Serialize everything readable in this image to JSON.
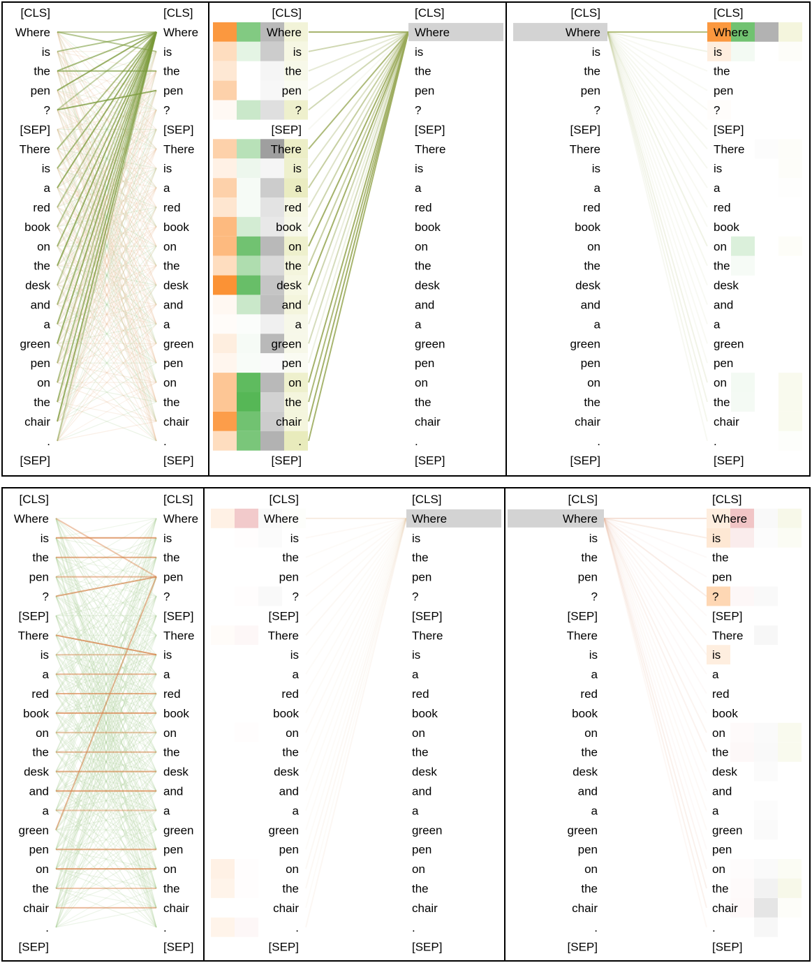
{
  "figure": {
    "description": "Attention visualization between tokens of a question-context pair"
  },
  "tokens": [
    "[CLS]",
    "Where",
    "is",
    "the",
    "pen",
    "?",
    "[SEP]",
    "There",
    "is",
    "a",
    "red",
    "book",
    "on",
    "the",
    "desk",
    "and",
    "a",
    "green",
    "pen",
    "on",
    "the",
    "chair",
    ".",
    "[SEP]"
  ],
  "query_token": "Where",
  "palette": {
    "green_line": "#7a9a3a",
    "orange_line": "#d9824a",
    "light_green_line": "#9fc88a",
    "highlight_gray": "#d3d3d3",
    "orange": "#fb8c2a",
    "green": "#4db34d",
    "gray": "#7f7f7f",
    "yellow": "#d9dd8f",
    "red": "#e79ea0"
  },
  "panels": [
    {
      "name": "top-left-all-attention",
      "style": "green",
      "strong_edges": [
        [
          1,
          1
        ],
        [
          2,
          1
        ],
        [
          3,
          1
        ],
        [
          4,
          1
        ],
        [
          5,
          1
        ],
        [
          7,
          1
        ],
        [
          8,
          1
        ],
        [
          9,
          1
        ],
        [
          10,
          1
        ],
        [
          11,
          1
        ],
        [
          12,
          1
        ],
        [
          13,
          1
        ],
        [
          14,
          1
        ],
        [
          15,
          1
        ],
        [
          16,
          1
        ],
        [
          17,
          1
        ],
        [
          18,
          1
        ],
        [
          19,
          1
        ],
        [
          20,
          1
        ],
        [
          21,
          1
        ],
        [
          22,
          1
        ],
        [
          1,
          2
        ],
        [
          3,
          3
        ],
        [
          5,
          4
        ]
      ]
    },
    {
      "name": "top-middle-query-attention",
      "heat": [
        [
          0,
          0,
          0,
          0
        ],
        [
          0.9,
          0.7,
          0.55,
          0.35
        ],
        [
          0.3,
          0.15,
          0.4,
          0.25
        ],
        [
          0.2,
          0,
          0.08,
          0.2
        ],
        [
          0.4,
          0,
          0.06,
          0.12
        ],
        [
          0.05,
          0.3,
          0.25,
          0.45
        ],
        [
          0,
          0,
          0,
          0
        ],
        [
          0.4,
          0.4,
          0.75,
          0.5
        ],
        [
          0.12,
          0.1,
          0.08,
          0.45
        ],
        [
          0.4,
          0.05,
          0.4,
          0.55
        ],
        [
          0.22,
          0.05,
          0.22,
          0.25
        ],
        [
          0.6,
          0.25,
          0.18,
          0.2
        ],
        [
          0.6,
          0.8,
          0.55,
          0.45
        ],
        [
          0.3,
          0.45,
          0.3,
          0.3
        ],
        [
          0.95,
          0.85,
          0.45,
          0.25
        ],
        [
          0.06,
          0.3,
          0.5,
          0.3
        ],
        [
          0.03,
          0.02,
          0.12,
          0.2
        ],
        [
          0.15,
          0.05,
          0.55,
          0.2
        ],
        [
          0.08,
          0.04,
          0.04,
          0.12
        ],
        [
          0.5,
          0.9,
          0.55,
          0.45
        ],
        [
          0.5,
          0.95,
          0.35,
          0.3
        ],
        [
          0.85,
          0.8,
          0.4,
          0.3
        ],
        [
          0.3,
          0.75,
          0.6,
          0.6
        ],
        [
          0,
          0,
          0,
          0
        ]
      ]
    },
    {
      "name": "top-right-query-attention",
      "heat": [
        [
          0,
          0,
          0,
          0
        ],
        [
          0.9,
          0.8,
          0.6,
          0.3
        ],
        [
          0.15,
          0.07,
          0,
          0.05
        ],
        [
          0,
          0,
          0,
          0
        ],
        [
          0,
          0,
          0,
          0
        ],
        [
          0.02,
          0,
          0,
          0
        ],
        [
          0,
          0,
          0,
          0
        ],
        [
          0,
          0,
          0.02,
          0.05
        ],
        [
          0,
          0,
          0,
          0.05
        ],
        [
          0,
          0,
          0,
          0.02
        ],
        [
          0,
          0,
          0,
          0
        ],
        [
          0,
          0,
          0,
          0
        ],
        [
          0,
          0.2,
          0,
          0.06
        ],
        [
          0,
          0.05,
          0,
          0
        ],
        [
          0,
          0,
          0,
          0
        ],
        [
          0,
          0,
          0,
          0
        ],
        [
          0,
          0,
          0,
          0
        ],
        [
          0,
          0,
          0,
          0
        ],
        [
          0,
          0,
          0,
          0
        ],
        [
          0,
          0.07,
          0,
          0.15
        ],
        [
          0,
          0.06,
          0,
          0.15
        ],
        [
          0,
          0,
          0,
          0.15
        ],
        [
          0,
          0,
          0,
          0.04
        ],
        [
          0,
          0,
          0,
          0
        ]
      ]
    },
    {
      "name": "bottom-left-all-attention",
      "style": "orange",
      "strong_edges": [
        [
          1,
          4
        ],
        [
          4,
          4
        ],
        [
          5,
          4
        ],
        [
          7,
          8
        ],
        [
          8,
          8
        ],
        [
          9,
          9
        ],
        [
          10,
          10
        ],
        [
          11,
          11
        ],
        [
          12,
          12
        ],
        [
          13,
          13
        ],
        [
          14,
          14
        ],
        [
          15,
          15
        ],
        [
          16,
          16
        ],
        [
          17,
          4
        ],
        [
          18,
          18
        ],
        [
          19,
          19
        ],
        [
          20,
          20
        ],
        [
          21,
          21
        ],
        [
          3,
          3
        ],
        [
          2,
          2
        ]
      ]
    },
    {
      "name": "bottom-middle-query-attention",
      "heat": [
        [
          0,
          0,
          0,
          0
        ],
        [
          0.12,
          0.55,
          0.05,
          0.04
        ],
        [
          0,
          0.02,
          0.03,
          0
        ],
        [
          0,
          0,
          0,
          0
        ],
        [
          0,
          0,
          0,
          0
        ],
        [
          0,
          0.02,
          0.05,
          0
        ],
        [
          0,
          0,
          0,
          0
        ],
        [
          0.03,
          0.08,
          0,
          0
        ],
        [
          0,
          0,
          0,
          0
        ],
        [
          0,
          0,
          0,
          0
        ],
        [
          0,
          0,
          0,
          0
        ],
        [
          0,
          0,
          0,
          0
        ],
        [
          0,
          0.02,
          0,
          0
        ],
        [
          0,
          0,
          0,
          0
        ],
        [
          0,
          0,
          0,
          0
        ],
        [
          0,
          0,
          0,
          0
        ],
        [
          0,
          0,
          0,
          0
        ],
        [
          0,
          0,
          0,
          0
        ],
        [
          0,
          0,
          0,
          0
        ],
        [
          0.12,
          0.02,
          0,
          0
        ],
        [
          0.1,
          0.02,
          0,
          0
        ],
        [
          0,
          0,
          0,
          0
        ],
        [
          0.1,
          0.08,
          0,
          0
        ],
        [
          0,
          0,
          0,
          0
        ]
      ]
    },
    {
      "name": "bottom-right-query-attention",
      "heat": [
        [
          0,
          0,
          0,
          0
        ],
        [
          0.15,
          0.6,
          0.05,
          0.2
        ],
        [
          0.2,
          0.2,
          0.02,
          0.1
        ],
        [
          0,
          0,
          0,
          0
        ],
        [
          0,
          0,
          0,
          0
        ],
        [
          0.35,
          0.08,
          0.05,
          0
        ],
        [
          0,
          0,
          0,
          0
        ],
        [
          0,
          0,
          0.06,
          0
        ],
        [
          0.15,
          0,
          0,
          0
        ],
        [
          0,
          0,
          0,
          0
        ],
        [
          0,
          0,
          0,
          0
        ],
        [
          0,
          0,
          0,
          0
        ],
        [
          0,
          0.05,
          0.04,
          0.15
        ],
        [
          0,
          0.07,
          0.05,
          0.15
        ],
        [
          0,
          0,
          0.03,
          0
        ],
        [
          0,
          0,
          0,
          0
        ],
        [
          0,
          0,
          0.02,
          0
        ],
        [
          0,
          0,
          0.04,
          0
        ],
        [
          0,
          0,
          0,
          0
        ],
        [
          0,
          0.03,
          0.04,
          0.1
        ],
        [
          0,
          0.05,
          0.1,
          0.2
        ],
        [
          0,
          0.06,
          0.2,
          0.05
        ],
        [
          0,
          0,
          0.06,
          0
        ],
        [
          0,
          0,
          0,
          0
        ]
      ]
    }
  ]
}
